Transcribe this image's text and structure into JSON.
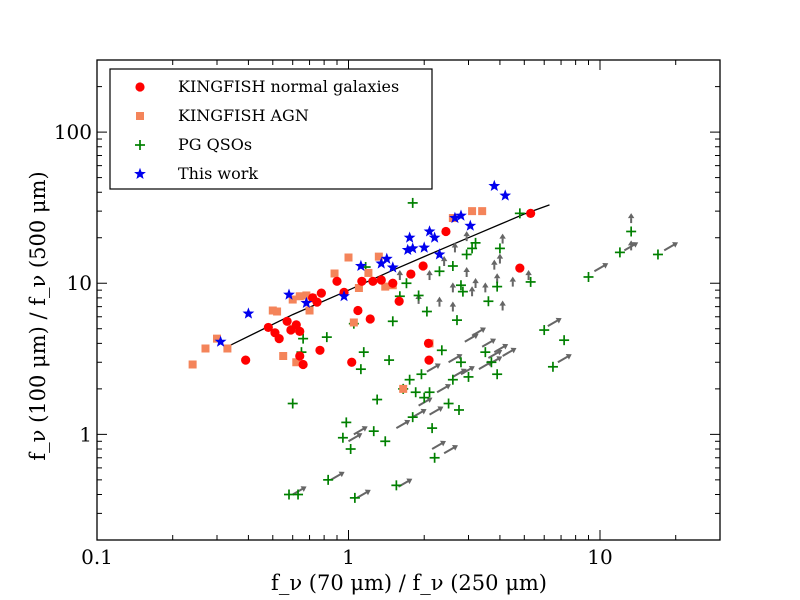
{
  "chart_data": {
    "type": "scatter",
    "title": "",
    "xlabel": "f_ν (70 μm) / f_ν (250 μm)",
    "ylabel": "f_ν (100 μm) / f_ν (500 μm)",
    "x_scale": "log",
    "y_scale": "log",
    "xlim": [
      0.1,
      30
    ],
    "ylim": [
      0.2,
      300
    ],
    "x_ticks": [
      {
        "value": 0.1,
        "label": "0.1"
      },
      {
        "value": 1,
        "label": "1"
      },
      {
        "value": 10,
        "label": "10"
      }
    ],
    "y_ticks": [
      {
        "value": 1,
        "label": "1"
      },
      {
        "value": 10,
        "label": "10"
      },
      {
        "value": 100,
        "label": "100"
      }
    ],
    "grid": false,
    "legend_position": "top-left",
    "legend": [
      {
        "label": "KINGFISH normal galaxies",
        "marker": "circle",
        "color": "#ff0000"
      },
      {
        "label": "KINGFISH AGN",
        "marker": "square",
        "color": "#f4845a"
      },
      {
        "label": "PG QSOs",
        "marker": "plus",
        "color": "#008000"
      },
      {
        "label": "This work",
        "marker": "star",
        "color": "#0000ee"
      }
    ],
    "arrow_color": "#666666",
    "series": [
      {
        "name": "KINGFISH normal galaxies",
        "points": [
          [
            0.39,
            3.1
          ],
          [
            0.48,
            5.1
          ],
          [
            0.51,
            4.7
          ],
          [
            0.53,
            4.3
          ],
          [
            0.57,
            5.6
          ],
          [
            0.59,
            4.9
          ],
          [
            0.62,
            5.3
          ],
          [
            0.64,
            4.8
          ],
          [
            0.64,
            3.3
          ],
          [
            0.66,
            2.9
          ],
          [
            0.72,
            8.0
          ],
          [
            0.75,
            7.5
          ],
          [
            0.77,
            3.6
          ],
          [
            0.78,
            8.6
          ],
          [
            0.9,
            10.3
          ],
          [
            0.96,
            8.7
          ],
          [
            1.03,
            3.0
          ],
          [
            1.09,
            6.6
          ],
          [
            1.13,
            10.3
          ],
          [
            1.22,
            5.8
          ],
          [
            1.25,
            10.3
          ],
          [
            1.35,
            10.5
          ],
          [
            1.5,
            10.0
          ],
          [
            1.59,
            7.6
          ],
          [
            1.77,
            11.5
          ],
          [
            1.98,
            13.0
          ],
          [
            2.08,
            4.0
          ],
          [
            2.09,
            3.1
          ],
          [
            2.44,
            22.0
          ],
          [
            4.8,
            12.6
          ],
          [
            5.3,
            29.0
          ]
        ]
      },
      {
        "name": "KINGFISH AGN",
        "points": [
          [
            0.24,
            2.9
          ],
          [
            0.27,
            3.7
          ],
          [
            0.3,
            4.3
          ],
          [
            0.33,
            3.7
          ],
          [
            0.5,
            6.6
          ],
          [
            0.52,
            6.5
          ],
          [
            0.55,
            3.3
          ],
          [
            0.6,
            5.0
          ],
          [
            0.6,
            7.8
          ],
          [
            0.62,
            3.0
          ],
          [
            0.64,
            8.2
          ],
          [
            0.68,
            8.3
          ],
          [
            0.7,
            6.6
          ],
          [
            0.72,
            8.0
          ],
          [
            0.88,
            11.6
          ],
          [
            1.0,
            14.8
          ],
          [
            1.05,
            5.5
          ],
          [
            1.1,
            9.3
          ],
          [
            1.2,
            11.7
          ],
          [
            1.32,
            15.0
          ],
          [
            1.4,
            9.5
          ],
          [
            1.5,
            9.7
          ],
          [
            1.65,
            2.0
          ],
          [
            2.1,
            4.0
          ],
          [
            2.6,
            27.0
          ],
          [
            3.1,
            30.0
          ],
          [
            3.4,
            30.0
          ]
        ]
      },
      {
        "name": "PG QSOs",
        "points": [
          [
            0.58,
            0.4
          ],
          [
            0.6,
            1.6
          ],
          [
            0.63,
            0.4
          ],
          [
            0.65,
            3.5
          ],
          [
            0.66,
            4.3
          ],
          [
            0.82,
            4.4
          ],
          [
            0.83,
            0.5
          ],
          [
            0.95,
            0.95
          ],
          [
            0.98,
            1.2
          ],
          [
            1.02,
            0.8
          ],
          [
            1.05,
            5.4
          ],
          [
            1.06,
            0.38
          ],
          [
            1.12,
            2.7
          ],
          [
            1.15,
            3.5
          ],
          [
            1.17,
            12.8
          ],
          [
            1.26,
            1.05
          ],
          [
            1.3,
            1.7
          ],
          [
            1.4,
            0.9
          ],
          [
            1.45,
            3.1
          ],
          [
            1.5,
            5.6
          ],
          [
            1.55,
            0.46
          ],
          [
            1.6,
            8.2
          ],
          [
            1.65,
            2.0
          ],
          [
            1.7,
            10.0
          ],
          [
            1.75,
            2.3
          ],
          [
            1.8,
            34.0
          ],
          [
            1.8,
            1.3
          ],
          [
            1.85,
            1.9
          ],
          [
            1.9,
            8.3
          ],
          [
            1.95,
            2.5
          ],
          [
            2.0,
            1.75
          ],
          [
            2.05,
            6.5
          ],
          [
            2.1,
            1.9
          ],
          [
            2.15,
            1.1
          ],
          [
            2.2,
            0.7
          ],
          [
            2.3,
            12.0
          ],
          [
            2.35,
            3.6
          ],
          [
            2.5,
            1.6
          ],
          [
            2.6,
            13.0
          ],
          [
            2.6,
            2.3
          ],
          [
            2.7,
            5.7
          ],
          [
            2.75,
            1.45
          ],
          [
            2.8,
            9.7
          ],
          [
            2.8,
            3.0
          ],
          [
            2.85,
            8.8
          ],
          [
            2.95,
            15.5
          ],
          [
            3.0,
            2.4
          ],
          [
            3.1,
            17.0
          ],
          [
            3.2,
            18.5
          ],
          [
            3.5,
            3.5
          ],
          [
            3.6,
            7.6
          ],
          [
            3.7,
            3.0
          ],
          [
            3.9,
            9.5
          ],
          [
            3.9,
            2.5
          ],
          [
            4.0,
            17.0
          ],
          [
            4.8,
            29.0
          ],
          [
            5.3,
            10.2
          ],
          [
            6.0,
            4.9
          ],
          [
            6.5,
            2.8
          ],
          [
            7.2,
            4.2
          ],
          [
            9.0,
            11.0
          ],
          [
            12.0,
            16.0
          ],
          [
            13.3,
            22.0
          ],
          [
            17.0,
            15.5
          ]
        ]
      },
      {
        "name": "This work",
        "points": [
          [
            0.31,
            4.1
          ],
          [
            0.4,
            6.3
          ],
          [
            0.58,
            8.4
          ],
          [
            0.68,
            7.4
          ],
          [
            0.96,
            8.2
          ],
          [
            1.12,
            13.0
          ],
          [
            1.35,
            13.5
          ],
          [
            1.42,
            14.5
          ],
          [
            1.5,
            12.7
          ],
          [
            1.72,
            16.6
          ],
          [
            1.75,
            20.0
          ],
          [
            1.8,
            17.0
          ],
          [
            2.0,
            17.2
          ],
          [
            2.1,
            22.0
          ],
          [
            2.2,
            20.0
          ],
          [
            2.3,
            15.5
          ],
          [
            2.65,
            27.0
          ],
          [
            2.8,
            28.0
          ],
          [
            3.05,
            24.0
          ],
          [
            3.8,
            44.0
          ],
          [
            4.2,
            38.0
          ]
        ]
      }
    ],
    "upper_arrows": [
      [
        1.6,
        10.5
      ],
      [
        2.1,
        10.5
      ],
      [
        2.4,
        13.0
      ],
      [
        2.6,
        8.7
      ],
      [
        2.95,
        11.0
      ],
      [
        3.2,
        9.3
      ],
      [
        3.8,
        12.3
      ],
      [
        3.9,
        10.0
      ],
      [
        4.0,
        13.5
      ],
      [
        4.1,
        18.3
      ],
      [
        4.5,
        9.5
      ],
      [
        5.2,
        10.5
      ],
      [
        2.65,
        16.0
      ],
      [
        2.95,
        19.0
      ],
      [
        13.3,
        25.0
      ],
      [
        13.3,
        16.5
      ],
      [
        1.9,
        7.3
      ],
      [
        2.3,
        7.0
      ],
      [
        2.6,
        6.5
      ],
      [
        3.1,
        8.2
      ],
      [
        3.5,
        8.7
      ],
      [
        4.1,
        6.6
      ]
    ],
    "diag_arrows": [
      [
        0.6,
        0.4
      ],
      [
        0.85,
        0.5
      ],
      [
        1.08,
        0.38
      ],
      [
        1.58,
        0.45
      ],
      [
        1.0,
        0.9
      ],
      [
        1.05,
        1.0
      ],
      [
        1.55,
        1.1
      ],
      [
        1.8,
        1.3
      ],
      [
        1.9,
        1.55
      ],
      [
        2.1,
        1.35
      ],
      [
        2.15,
        0.8
      ],
      [
        2.4,
        0.75
      ],
      [
        2.25,
        1.9
      ],
      [
        2.6,
        2.4
      ],
      [
        2.8,
        2.5
      ],
      [
        2.05,
        2.6
      ],
      [
        2.5,
        3.0
      ],
      [
        3.3,
        2.7
      ],
      [
        3.6,
        3.2
      ],
      [
        3.6,
        2.9
      ],
      [
        4.1,
        3.3
      ],
      [
        2.9,
        4.1
      ],
      [
        3.1,
        4.5
      ],
      [
        3.4,
        3.8
      ],
      [
        3.8,
        3.5
      ],
      [
        6.2,
        5.2
      ],
      [
        6.8,
        3.0
      ],
      [
        9.5,
        12.0
      ],
      [
        12.5,
        16.5
      ],
      [
        18.0,
        16.5
      ]
    ],
    "fit_line": [
      [
        0.33,
        3.8
      ],
      [
        0.6,
        6.2
      ],
      [
        1.0,
        9.0
      ],
      [
        1.5,
        12.2
      ],
      [
        2.0,
        15.0
      ],
      [
        3.0,
        20.0
      ],
      [
        4.0,
        24.5
      ],
      [
        5.0,
        28.7
      ],
      [
        6.3,
        33.0
      ]
    ]
  }
}
